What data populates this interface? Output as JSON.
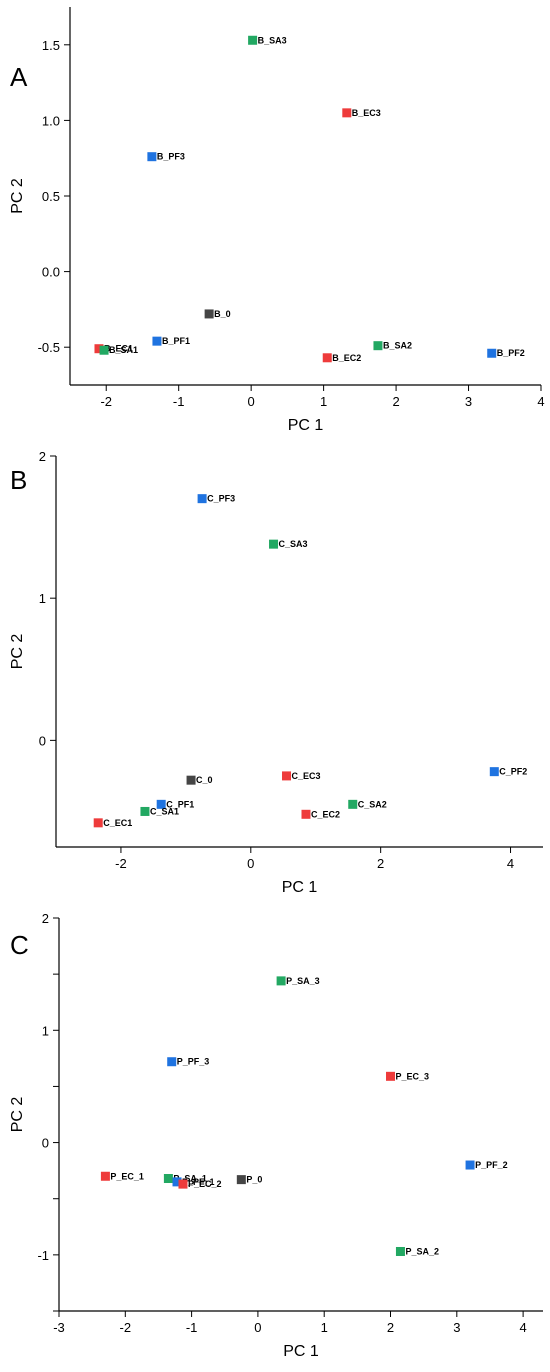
{
  "chart_data": [
    {
      "type": "scatter",
      "panel_label": "A",
      "xlabel": "PC 1",
      "ylabel": "PC 2",
      "xlim": [
        -2.5,
        4
      ],
      "ylim": [
        -0.75,
        1.75
      ],
      "xticks": [
        -2,
        -1,
        0,
        1,
        2,
        3,
        4
      ],
      "yticks": [
        -0.5,
        0.0,
        0.5,
        1.0,
        1.5
      ],
      "ytick_labels": [
        "-0.5",
        "0.0",
        "0.5",
        "1.0",
        "1.5"
      ],
      "points": [
        {
          "label": "B_SA3",
          "x": 0.02,
          "y": 1.53,
          "group": "SA"
        },
        {
          "label": "B_EC3",
          "x": 1.32,
          "y": 1.05,
          "group": "EC"
        },
        {
          "label": "B_PF3",
          "x": -1.37,
          "y": 0.76,
          "group": "PF"
        },
        {
          "label": "B_0",
          "x": -0.58,
          "y": -0.28,
          "group": "0"
        },
        {
          "label": "B_PF1",
          "x": -1.3,
          "y": -0.46,
          "group": "PF"
        },
        {
          "label": "B_EC1",
          "x": -2.1,
          "y": -0.51,
          "group": "EC"
        },
        {
          "label": "B_SA1",
          "x": -2.03,
          "y": -0.52,
          "group": "SA"
        },
        {
          "label": "B_EC2",
          "x": 1.05,
          "y": -0.57,
          "group": "EC"
        },
        {
          "label": "B_SA2",
          "x": 1.75,
          "y": -0.49,
          "group": "SA"
        },
        {
          "label": "B_PF2",
          "x": 3.32,
          "y": -0.54,
          "group": "PF"
        }
      ]
    },
    {
      "type": "scatter",
      "panel_label": "B",
      "xlabel": "PC 1",
      "ylabel": "PC 2",
      "xlim": [
        -3,
        4.5
      ],
      "ylim": [
        -0.75,
        2
      ],
      "xticks": [
        -2,
        0,
        2,
        4
      ],
      "yticks": [
        0,
        1,
        2
      ],
      "ytick_labels": [
        "0",
        "1",
        "2"
      ],
      "points": [
        {
          "label": "C_PF3",
          "x": -0.75,
          "y": 1.7,
          "group": "PF"
        },
        {
          "label": "C_SA3",
          "x": 0.35,
          "y": 1.38,
          "group": "SA"
        },
        {
          "label": "C_0",
          "x": -0.92,
          "y": -0.28,
          "group": "0"
        },
        {
          "label": "C_EC3",
          "x": 0.55,
          "y": -0.25,
          "group": "EC"
        },
        {
          "label": "C_PF2",
          "x": 3.75,
          "y": -0.22,
          "group": "PF"
        },
        {
          "label": "C_PF1",
          "x": -1.38,
          "y": -0.45,
          "group": "PF"
        },
        {
          "label": "C_SA2",
          "x": 1.57,
          "y": -0.45,
          "group": "SA"
        },
        {
          "label": "C_SA1",
          "x": -1.63,
          "y": -0.5,
          "group": "SA"
        },
        {
          "label": "C_EC2",
          "x": 0.85,
          "y": -0.52,
          "group": "EC"
        },
        {
          "label": "C_EC1",
          "x": -2.35,
          "y": -0.58,
          "group": "EC"
        }
      ]
    },
    {
      "type": "scatter",
      "panel_label": "C",
      "xlabel": "PC 1",
      "ylabel": "PC 2",
      "xlim": [
        -3,
        4.3
      ],
      "ylim": [
        -1.5,
        2
      ],
      "xticks": [
        -3,
        -2,
        -1,
        0,
        1,
        2,
        3,
        4
      ],
      "yticks": [
        -1.5,
        -1,
        -0.5,
        0,
        0.5,
        1,
        1.5,
        2
      ],
      "ytick_labels": [
        "",
        "-1",
        "",
        "0",
        "",
        "1",
        "",
        "2"
      ],
      "points": [
        {
          "label": "P_SA_3",
          "x": 0.35,
          "y": 1.44,
          "group": "SA"
        },
        {
          "label": "P_PF_3",
          "x": -1.3,
          "y": 0.72,
          "group": "PF"
        },
        {
          "label": "P_EC_3",
          "x": 2.0,
          "y": 0.59,
          "group": "EC"
        },
        {
          "label": "P_EC_1",
          "x": -2.3,
          "y": -0.3,
          "group": "EC"
        },
        {
          "label": "P_SA_1",
          "x": -1.35,
          "y": -0.32,
          "group": "SA"
        },
        {
          "label": "P_PF_1",
          "x": -1.22,
          "y": -0.35,
          "group": "PF"
        },
        {
          "label": "P_EC_2",
          "x": -1.13,
          "y": -0.37,
          "group": "EC"
        },
        {
          "label": "P_0",
          "x": -0.25,
          "y": -0.33,
          "group": "0"
        },
        {
          "label": "P_PF_2",
          "x": 3.2,
          "y": -0.2,
          "group": "PF"
        },
        {
          "label": "P_SA_2",
          "x": 2.15,
          "y": -0.97,
          "group": "SA"
        }
      ]
    }
  ],
  "colors": {
    "PF": "#1f73e0",
    "EC": "#ee3b3b",
    "SA": "#22a862",
    "0": "#454545"
  }
}
